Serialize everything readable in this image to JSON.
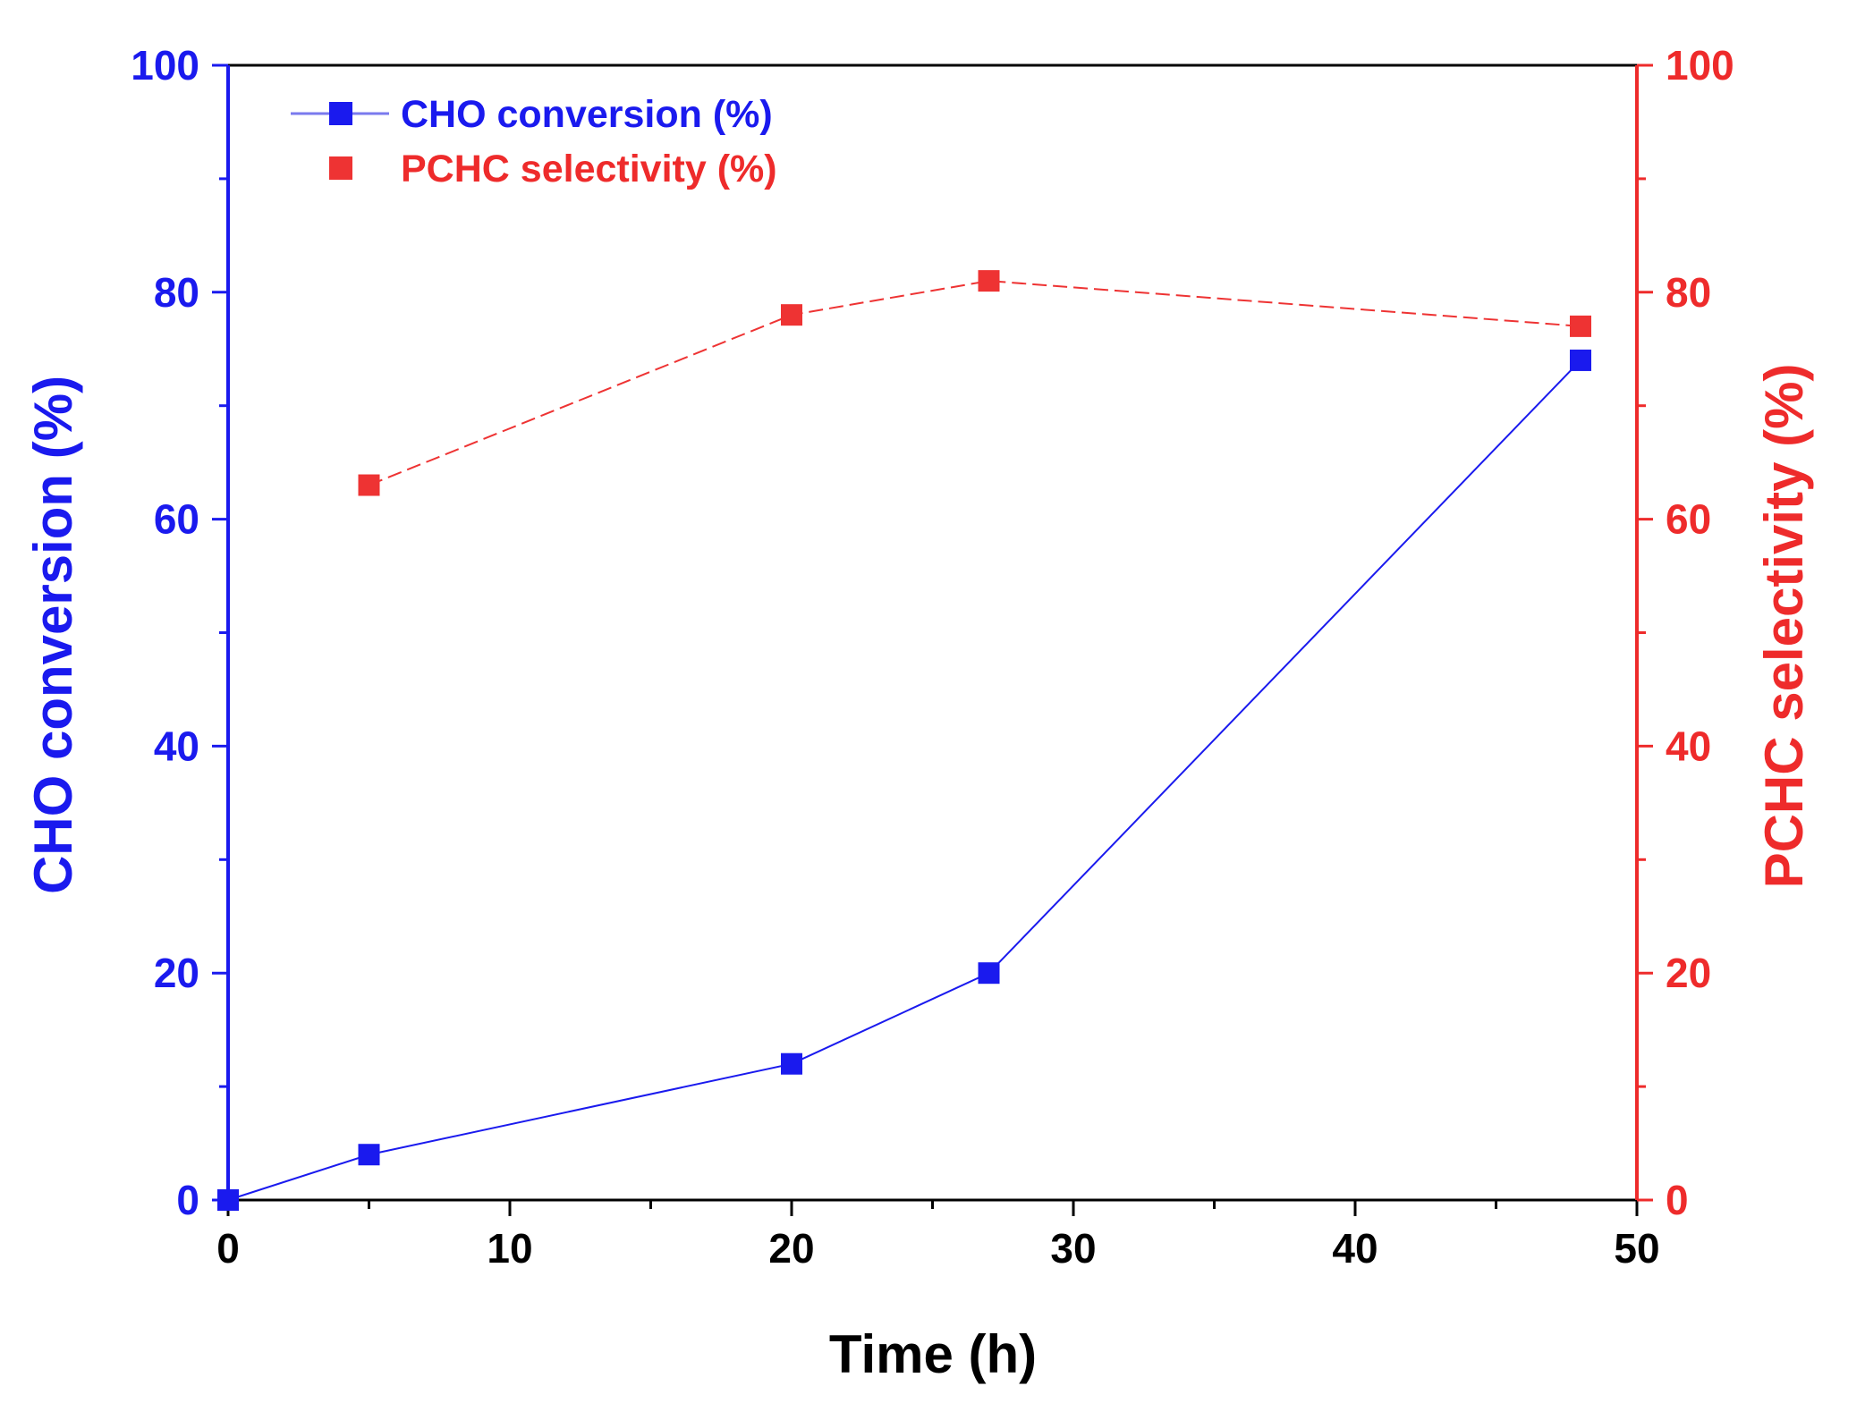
{
  "chart_data": {
    "type": "line",
    "title": "",
    "xlabel": "Time (h)",
    "ylabel_left": "CHO conversion (%)",
    "ylabel_right": "PCHC selectivity (%)",
    "xlim": [
      0,
      50
    ],
    "ylim_left": [
      0,
      100
    ],
    "ylim_right": [
      0,
      100
    ],
    "x_ticks": [
      0,
      10,
      20,
      30,
      40,
      50
    ],
    "y_ticks": [
      0,
      20,
      40,
      60,
      80,
      100
    ],
    "grid": false,
    "legend_position": "top-left",
    "colors": {
      "left_axis": "#1a1aee",
      "right_axis": "#ee2b2b",
      "bottom_axis": "#000000"
    },
    "series": [
      {
        "name": "CHO conversion (%)",
        "axis": "left",
        "color": "#1a1aee",
        "line_style": "solid",
        "x": [
          0,
          5,
          20,
          27,
          48
        ],
        "values": [
          0,
          4,
          12,
          20,
          74
        ]
      },
      {
        "name": "PCHC selectivity (%)",
        "axis": "right",
        "color": "#ee3333",
        "line_style": "dashed",
        "x": [
          5,
          20,
          27,
          48
        ],
        "values": [
          63,
          78,
          81,
          77
        ]
      }
    ]
  }
}
